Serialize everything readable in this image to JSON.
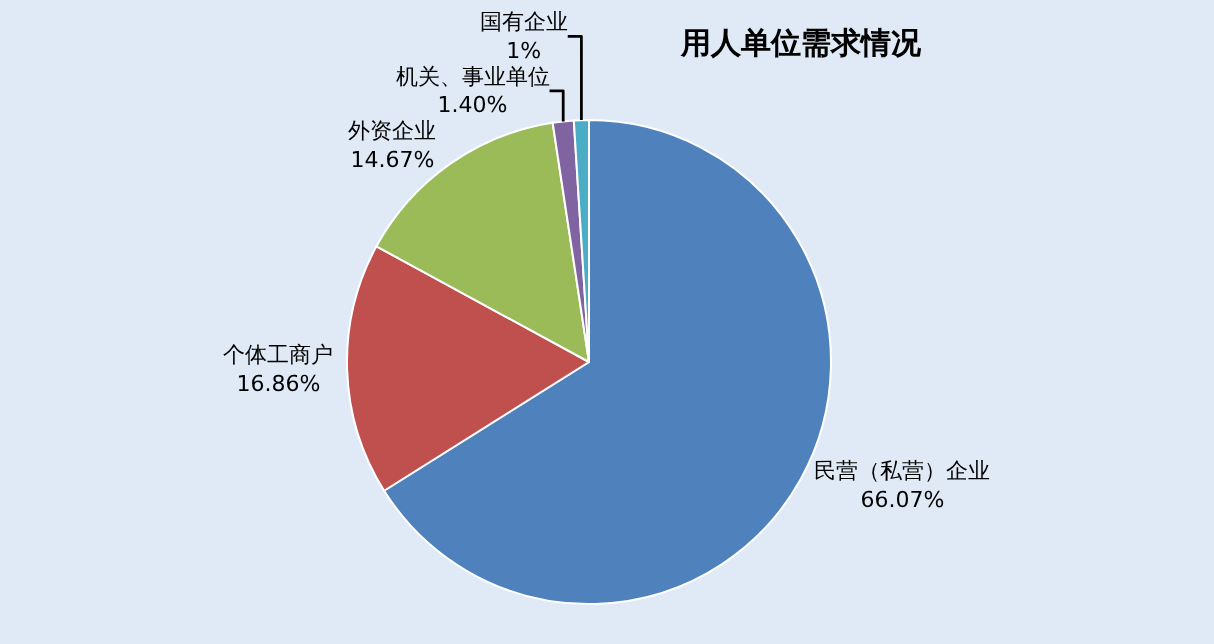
{
  "chart_data": {
    "type": "pie",
    "title": "用人单位需求情况",
    "categories": [
      "民营（私营）企业",
      "个体工商户",
      "外资企业",
      "机关、事业单位",
      "国有企业"
    ],
    "values": [
      66.07,
      16.86,
      14.67,
      1.4,
      1
    ],
    "value_labels": [
      "66.07%",
      "16.86%",
      "14.67%",
      "1.40%",
      "1%"
    ],
    "colors": [
      "#4f81bd",
      "#c0504d",
      "#9bbb59",
      "#8064a2",
      "#4bacc6"
    ],
    "legend": false
  }
}
